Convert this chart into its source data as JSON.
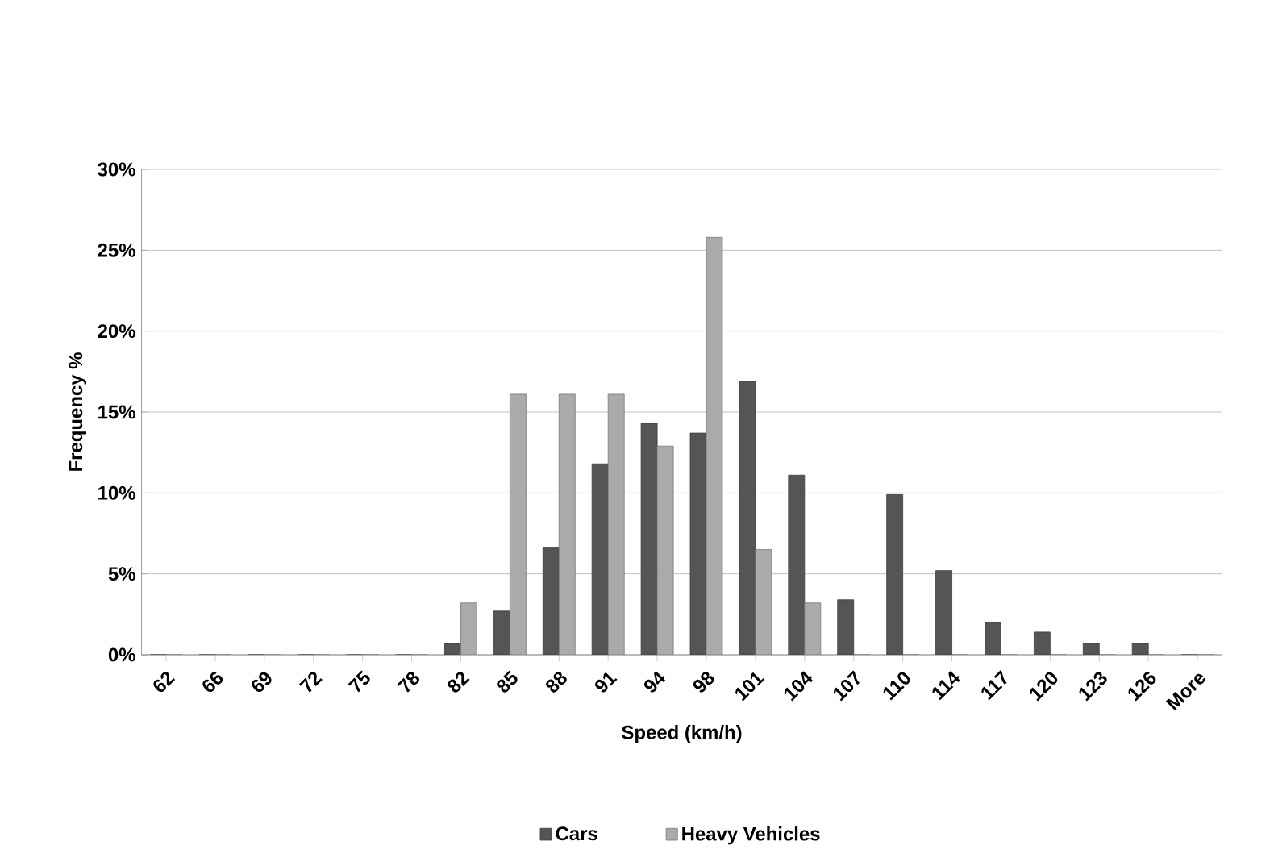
{
  "chart_data": {
    "type": "bar",
    "xlabel": "Speed (km/h)",
    "ylabel": "Frequency %",
    "categories": [
      "62",
      "66",
      "69",
      "72",
      "75",
      "78",
      "82",
      "85",
      "88",
      "91",
      "94",
      "98",
      "101",
      "104",
      "107",
      "110",
      "114",
      "117",
      "120",
      "123",
      "126",
      "More"
    ],
    "series": [
      {
        "name": "Cars",
        "color": "#555555",
        "values": [
          0,
          0,
          0,
          0,
          0,
          0,
          0.7,
          2.7,
          6.6,
          11.8,
          14.3,
          13.7,
          16.9,
          11.1,
          3.4,
          9.9,
          5.2,
          2.0,
          1.4,
          0.7,
          0.7,
          0
        ]
      },
      {
        "name": "Heavy Vehicles",
        "color": "#aaaaaa",
        "values": [
          0,
          0,
          0,
          0,
          0,
          0,
          3.2,
          16.1,
          16.1,
          16.1,
          12.9,
          25.8,
          6.5,
          3.2,
          0,
          0,
          0,
          0,
          0,
          0,
          0,
          0
        ]
      }
    ],
    "ylim": [
      0,
      30
    ],
    "yticks": [
      {
        "value": 0,
        "label": "0%"
      },
      {
        "value": 5,
        "label": "5%"
      },
      {
        "value": 10,
        "label": "10%"
      },
      {
        "value": 15,
        "label": "15%"
      },
      {
        "value": 20,
        "label": "20%"
      },
      {
        "value": 25,
        "label": "25%"
      },
      {
        "value": 30,
        "label": "30%"
      }
    ],
    "grid": "y",
    "legend": "bottom"
  }
}
